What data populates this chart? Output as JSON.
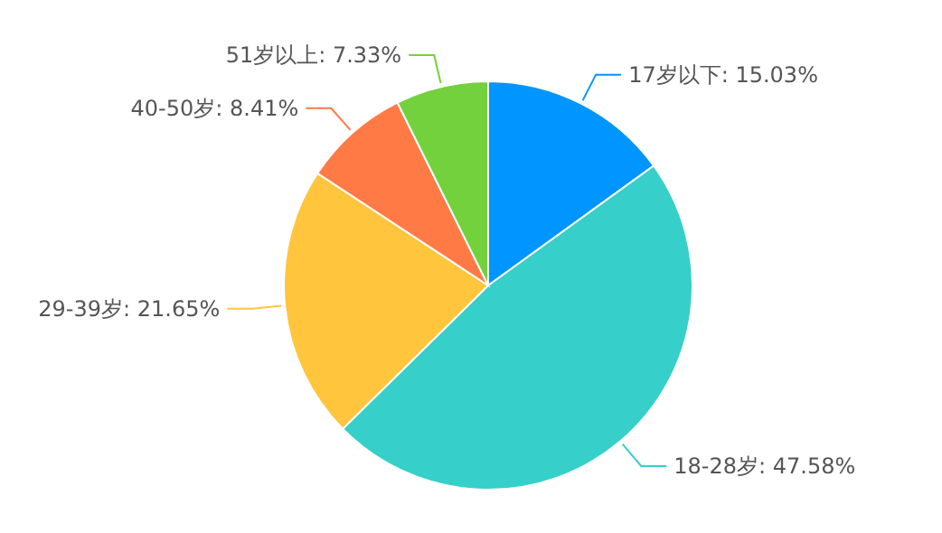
{
  "chart_data": {
    "type": "pie",
    "categories": [
      "17岁以下",
      "18-28岁",
      "29-39岁",
      "40-50岁",
      "51岁以上"
    ],
    "values": [
      15.03,
      47.58,
      21.65,
      8.41,
      7.33
    ],
    "value_labels": [
      ": 15.03%",
      ": 47.58%",
      ": 21.65%",
      ": 8.41%",
      ": 7.33%"
    ],
    "colors": [
      "#0095ff",
      "#36cfc9",
      "#ffc53d",
      "#ff7a45",
      "#73d13d"
    ]
  }
}
